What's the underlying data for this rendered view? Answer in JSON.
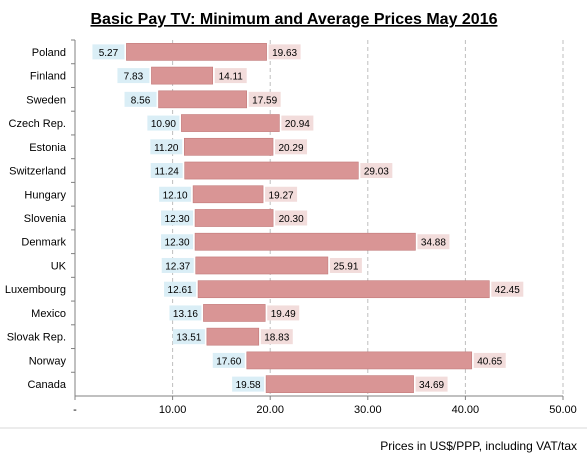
{
  "chart_data": {
    "type": "bar",
    "title": "Basic Pay TV: Minimum and Average Prices May 2016",
    "xlabel": "Prices in US$/PPP, including VAT/tax",
    "ylabel": "",
    "xlim": [
      0,
      50
    ],
    "x_ticks": [
      "-",
      "10.00",
      "20.00",
      "30.00",
      "40.00",
      "50.00"
    ],
    "grid": "vertical dashed",
    "categories": [
      "Poland",
      "Finland",
      "Sweden",
      "Czech Rep.",
      "Estonia",
      "Switzerland",
      "Hungary",
      "Slovenia",
      "Denmark",
      "UK",
      "Luxembourg",
      "Mexico",
      "Slovak Rep.",
      "Norway",
      "Canada"
    ],
    "series": [
      {
        "values": [
          5.27,
          7.83,
          8.56,
          10.9,
          11.2,
          11.24,
          12.1,
          12.3,
          12.3,
          12.37,
          12.61,
          13.16,
          13.51,
          17.6,
          19.58
        ],
        "labels": [
          "5.27",
          "7.83",
          "8.56",
          "10.90",
          "11.20",
          "11.24",
          "12.10",
          "12.30",
          "12.30",
          "12.37",
          "12.61",
          "13.16",
          "13.51",
          "17.60",
          "19.58"
        ],
        "color": "#daeef6"
      },
      {
        "values": [
          19.63,
          14.11,
          17.59,
          20.94,
          20.29,
          29.03,
          19.27,
          20.3,
          34.88,
          25.91,
          42.45,
          19.49,
          18.83,
          40.65,
          34.69
        ],
        "labels": [
          "19.63",
          "14.11",
          "17.59",
          "20.94",
          "20.29",
          "29.03",
          "19.27",
          "20.30",
          "34.88",
          "25.91",
          "42.45",
          "19.49",
          "18.83",
          "40.65",
          "34.69"
        ],
        "color": "#d99595"
      }
    ],
    "colors": {
      "bar": "#d99595",
      "bar_edge": "#c27a7a",
      "min_label_bg": "#daeef6",
      "avg_label_bg": "#f2dcdb",
      "grid": "#bfbfbf"
    }
  }
}
